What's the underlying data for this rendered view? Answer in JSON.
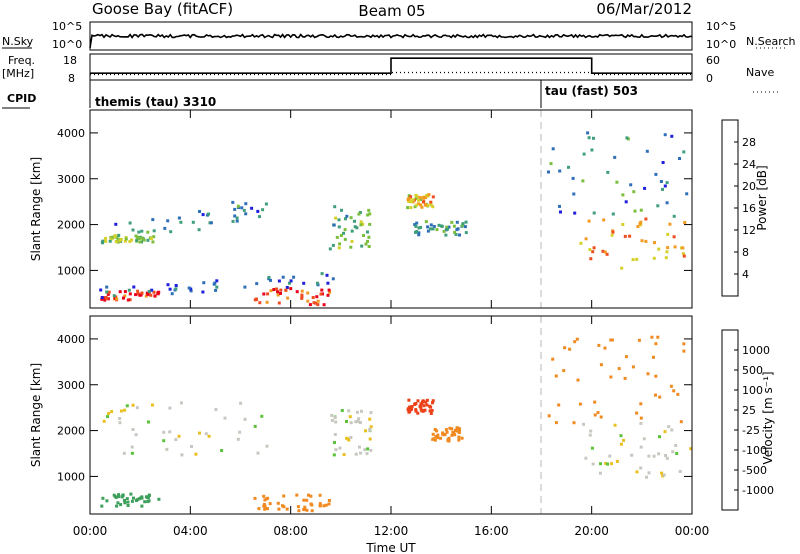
{
  "header": {
    "station": "Goose Bay (fitACF)",
    "beam": "Beam 05",
    "date": "06/Mar/2012"
  },
  "top_panel": {
    "nsky_label": "N.Sky",
    "nsearch_label": "N.Search",
    "left_ticks": [
      "10^5",
      "10^0"
    ],
    "right_ticks": [
      "10^5",
      "10^0"
    ]
  },
  "freq_panel": {
    "freq_label_line1": "Freq.",
    "freq_label_line2": "[MHz]",
    "nave_label": "Nave",
    "left_ticks": [
      "18",
      "8"
    ],
    "right_ticks": [
      "60",
      "0"
    ]
  },
  "cpid_panel": {
    "label": "CPID",
    "mode1": "themis (tau) 3310",
    "mode2": "tau (fast) 503"
  },
  "axes": {
    "x_label": "Time UT",
    "y_label": "Slant Range [km]",
    "x_ticks": [
      "00:00",
      "04:00",
      "08:00",
      "12:00",
      "16:00",
      "20:00",
      "00:00"
    ],
    "y_ticks": [
      "1000",
      "2000",
      "3000",
      "4000"
    ]
  },
  "power_colorbar": {
    "label": "Power [dB]",
    "ticks": [
      "4",
      "8",
      "12",
      "16",
      "20",
      "24",
      "28"
    ],
    "colors": [
      "#1f1fdc",
      "#2f6fb8",
      "#3f9f7a",
      "#7bbe3c",
      "#d6d02a",
      "#f39a22",
      "#ef4c20",
      "#e8001c"
    ]
  },
  "velocity_colorbar": {
    "label": "Velocity [m s⁻¹]",
    "ticks": [
      "1000",
      "500",
      "100",
      "25",
      "-25",
      "-100",
      "-500",
      "-1000"
    ],
    "colors": [
      "#2140c8",
      "#2f7fa8",
      "#3c9f5a",
      "#5cc23a",
      "#c8c8c0",
      "#e8c020",
      "#f08a20",
      "#ec4018",
      "#e0001c"
    ]
  },
  "chart_data": [
    {
      "type": "heatmap",
      "title": "Power",
      "xlabel": "Time UT",
      "ylabel": "Slant Range [km]",
      "xlim": [
        0,
        24
      ],
      "ylim": [
        180,
        4500
      ],
      "zlabel": "Power [dB]",
      "zlim": [
        0,
        30
      ],
      "regions": [
        {
          "t": [
            0.4,
            7.0
          ],
          "r": [
            1500,
            2650
          ],
          "trend": "rising",
          "power_db": 8
        },
        {
          "t": [
            0.3,
            2.5
          ],
          "r": [
            1650,
            1800
          ],
          "power_db": 14
        },
        {
          "t": [
            0.4,
            2.7
          ],
          "r": [
            380,
            600
          ],
          "power_db": 28
        },
        {
          "t": [
            0.3,
            10.0
          ],
          "r": [
            400,
            1000
          ],
          "trend": "rising",
          "power_db": 6
        },
        {
          "t": [
            6.5,
            9.5
          ],
          "r": [
            280,
            640
          ],
          "power_db": 26
        },
        {
          "t": [
            9.5,
            11.2
          ],
          "r": [
            1500,
            2500
          ],
          "power_db": 12
        },
        {
          "t": [
            12.6,
            13.7
          ],
          "r": [
            2400,
            2700
          ],
          "power_db": 20
        },
        {
          "t": [
            12.8,
            15.0
          ],
          "r": [
            1800,
            2100
          ],
          "power_db": 10
        },
        {
          "t": [
            19.5,
            23.9
          ],
          "r": [
            1000,
            2200
          ],
          "power_db": 22
        },
        {
          "t": [
            18.2,
            23.9
          ],
          "r": [
            2200,
            4100
          ],
          "power_db": 8
        }
      ]
    },
    {
      "type": "heatmap",
      "title": "Velocity",
      "xlabel": "Time UT",
      "ylabel": "Slant Range [km]",
      "xlim": [
        0,
        24
      ],
      "ylim": [
        180,
        4500
      ],
      "zlabel": "Velocity [m s⁻¹]",
      "zlim": [
        -1000,
        1000
      ],
      "regions": [
        {
          "t": [
            0.4,
            7.0
          ],
          "r": [
            1500,
            2650
          ],
          "velocity": 0
        },
        {
          "t": [
            0.4,
            2.7
          ],
          "r": [
            380,
            650
          ],
          "velocity": 150
        },
        {
          "t": [
            6.5,
            9.5
          ],
          "r": [
            280,
            640
          ],
          "velocity": -350
        },
        {
          "t": [
            9.5,
            11.2
          ],
          "r": [
            1500,
            2500
          ],
          "velocity": 0
        },
        {
          "t": [
            12.6,
            13.7
          ],
          "r": [
            2400,
            2700
          ],
          "velocity": -700
        },
        {
          "t": [
            13.6,
            14.8
          ],
          "r": [
            1800,
            2100
          ],
          "velocity": -400
        },
        {
          "t": [
            19.5,
            23.9
          ],
          "r": [
            1000,
            2200
          ],
          "velocity": 0
        },
        {
          "t": [
            18.2,
            23.9
          ],
          "r": [
            2200,
            4100
          ],
          "velocity": -150
        }
      ]
    }
  ]
}
